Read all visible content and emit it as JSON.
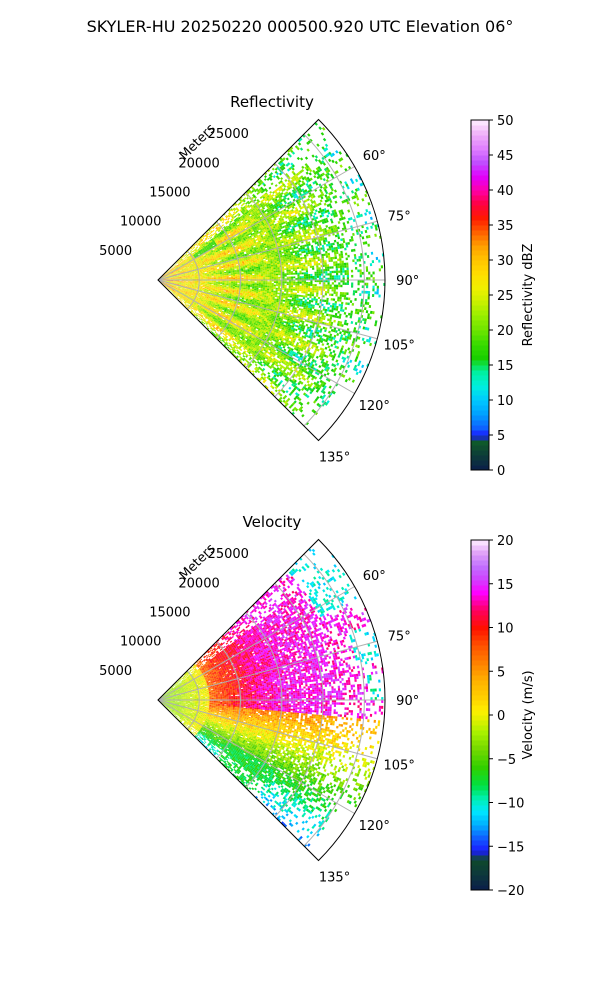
{
  "figure": {
    "title": "SKYLER-HU  20250220  000500.920 UTC Elevation 06°"
  },
  "colors": {
    "grid": "#b0b0b0",
    "axis": "#000000",
    "background": "#ffffff"
  },
  "chart_data": [
    {
      "type": "heatmap",
      "projection": "polar-sector",
      "title": "Reflectivity",
      "range_axis_label": "Meters",
      "range_ticks": [
        5000,
        10000,
        15000,
        20000,
        25000
      ],
      "range_tick_labels": [
        "5000",
        "10000",
        "15000",
        "20000",
        "25000"
      ],
      "range_max": 27500,
      "azimuth_range_deg": [
        45,
        135
      ],
      "azimuth_ticks": [
        60,
        75,
        90,
        105,
        120,
        135
      ],
      "azimuth_tick_labels": [
        "60°",
        "75°",
        "90°",
        "105°",
        "120°",
        "135°"
      ],
      "grid": true,
      "colorbar": {
        "label": "Reflectivity dBZ",
        "min": 0,
        "max": 50,
        "ticks": [
          0,
          5,
          10,
          15,
          20,
          25,
          30,
          35,
          40,
          45,
          50
        ],
        "tick_labels": [
          "0",
          "5",
          "10",
          "15",
          "20",
          "25",
          "30",
          "35",
          "40",
          "45",
          "50"
        ],
        "colormap": "pyart_NWSRef"
      },
      "field_summary": {
        "dominant_value_range": [
          18,
          26
        ],
        "near_radar_value_range": [
          27,
          32
        ],
        "far_edge": "sparse, speckled returns"
      }
    },
    {
      "type": "heatmap",
      "projection": "polar-sector",
      "title": "Velocity",
      "range_axis_label": "Meters",
      "range_ticks": [
        5000,
        10000,
        15000,
        20000,
        25000
      ],
      "range_tick_labels": [
        "5000",
        "10000",
        "15000",
        "20000",
        "25000"
      ],
      "range_max": 27500,
      "azimuth_range_deg": [
        45,
        135
      ],
      "azimuth_ticks": [
        60,
        75,
        90,
        105,
        120,
        135
      ],
      "azimuth_tick_labels": [
        "60°",
        "75°",
        "90°",
        "105°",
        "120°",
        "135°"
      ],
      "grid": true,
      "colorbar": {
        "label": "Velocity (m/s)",
        "min": -20,
        "max": 20,
        "ticks": [
          -20,
          -15,
          -10,
          -5,
          0,
          5,
          10,
          15,
          20
        ],
        "tick_labels": [
          "−20",
          "−15",
          "−10",
          "−5",
          "0",
          "5",
          "10",
          "15",
          "20"
        ],
        "colormap": "pyart_NWSVel"
      },
      "field_summary": {
        "near_radar_value_range": [
          -5,
          0
        ],
        "mid_range_band_value_range": [
          8,
          12
        ],
        "north_far_value_range": [
          13,
          17
        ],
        "south_far_value_range": [
          -10,
          -3
        ],
        "northeast_edge_value_range": [
          -14,
          -10
        ]
      }
    }
  ]
}
